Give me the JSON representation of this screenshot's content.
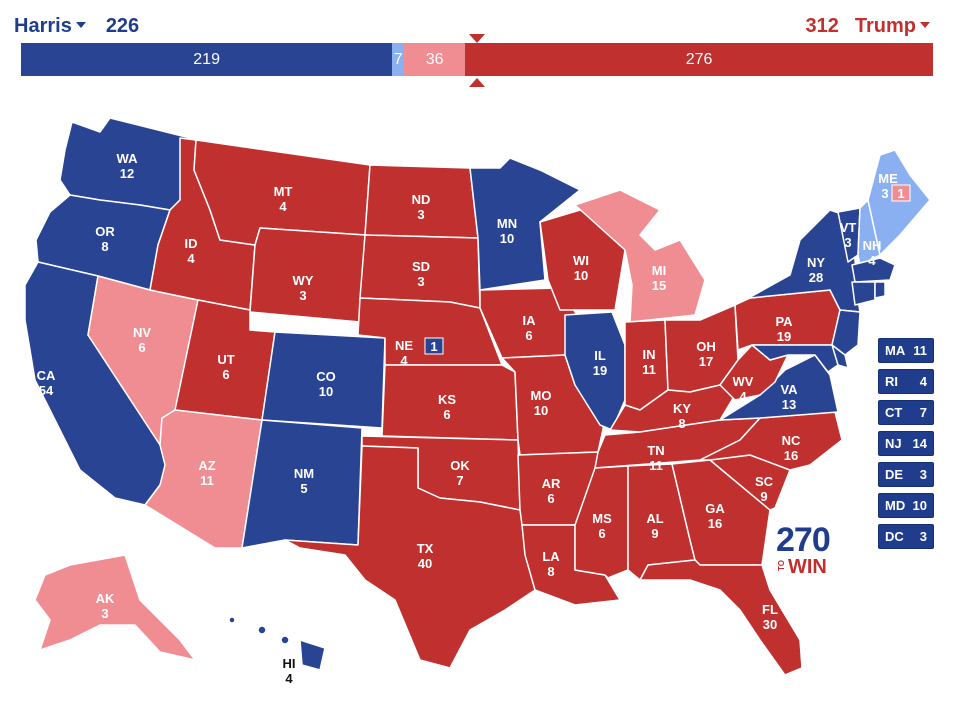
{
  "colors": {
    "safe_dem": "#2a4494",
    "lean_dem": "#8ab0f2",
    "lean_rep": "#f08d93",
    "safe_rep": "#c0302f"
  },
  "header": {
    "left_candidate": "Harris",
    "left_total": "226",
    "right_candidate": "Trump",
    "right_total": "312",
    "left_caret_icon": "chevron-down-icon",
    "right_caret_icon": "chevron-down-icon"
  },
  "bar": {
    "total_votes": 538,
    "segments": [
      {
        "label": "219",
        "value": 219,
        "category": "safe_dem"
      },
      {
        "label": "7",
        "value": 7,
        "category": "lean_dem"
      },
      {
        "label": "36",
        "value": 36,
        "category": "lean_rep"
      },
      {
        "label": "276",
        "value": 276,
        "category": "safe_rep"
      }
    ]
  },
  "states": {
    "WA": {
      "abbr": "WA",
      "votes": "12",
      "category": "safe_dem"
    },
    "OR": {
      "abbr": "OR",
      "votes": "8",
      "category": "safe_dem"
    },
    "CA": {
      "abbr": "CA",
      "votes": "54",
      "category": "safe_dem"
    },
    "NV": {
      "abbr": "NV",
      "votes": "6",
      "category": "lean_rep"
    },
    "ID": {
      "abbr": "ID",
      "votes": "4",
      "category": "safe_rep"
    },
    "MT": {
      "abbr": "MT",
      "votes": "4",
      "category": "safe_rep"
    },
    "WY": {
      "abbr": "WY",
      "votes": "3",
      "category": "safe_rep"
    },
    "UT": {
      "abbr": "UT",
      "votes": "6",
      "category": "safe_rep"
    },
    "AZ": {
      "abbr": "AZ",
      "votes": "11",
      "category": "lean_rep"
    },
    "CO": {
      "abbr": "CO",
      "votes": "10",
      "category": "safe_dem"
    },
    "NM": {
      "abbr": "NM",
      "votes": "5",
      "category": "safe_dem"
    },
    "ND": {
      "abbr": "ND",
      "votes": "3",
      "category": "safe_rep"
    },
    "SD": {
      "abbr": "SD",
      "votes": "3",
      "category": "safe_rep"
    },
    "NE": {
      "abbr": "NE",
      "votes": "4",
      "category": "safe_rep",
      "district_votes": "1",
      "district_category": "safe_dem"
    },
    "KS": {
      "abbr": "KS",
      "votes": "6",
      "category": "safe_rep"
    },
    "OK": {
      "abbr": "OK",
      "votes": "7",
      "category": "safe_rep"
    },
    "TX": {
      "abbr": "TX",
      "votes": "40",
      "category": "safe_rep"
    },
    "MN": {
      "abbr": "MN",
      "votes": "10",
      "category": "safe_dem"
    },
    "IA": {
      "abbr": "IA",
      "votes": "6",
      "category": "safe_rep"
    },
    "MO": {
      "abbr": "MO",
      "votes": "10",
      "category": "safe_rep"
    },
    "AR": {
      "abbr": "AR",
      "votes": "6",
      "category": "safe_rep"
    },
    "LA": {
      "abbr": "LA",
      "votes": "8",
      "category": "safe_rep"
    },
    "WI": {
      "abbr": "WI",
      "votes": "10",
      "category": "safe_rep"
    },
    "IL": {
      "abbr": "IL",
      "votes": "19",
      "category": "safe_dem"
    },
    "MI": {
      "abbr": "MI",
      "votes": "15",
      "category": "lean_rep"
    },
    "IN": {
      "abbr": "IN",
      "votes": "11",
      "category": "safe_rep"
    },
    "OH": {
      "abbr": "OH",
      "votes": "17",
      "category": "safe_rep"
    },
    "KY": {
      "abbr": "KY",
      "votes": "8",
      "category": "safe_rep"
    },
    "TN": {
      "abbr": "TN",
      "votes": "11",
      "category": "safe_rep"
    },
    "MS": {
      "abbr": "MS",
      "votes": "6",
      "category": "safe_rep"
    },
    "AL": {
      "abbr": "AL",
      "votes": "9",
      "category": "safe_rep"
    },
    "GA": {
      "abbr": "GA",
      "votes": "16",
      "category": "safe_rep"
    },
    "FL": {
      "abbr": "FL",
      "votes": "30",
      "category": "safe_rep"
    },
    "SC": {
      "abbr": "SC",
      "votes": "9",
      "category": "safe_rep"
    },
    "NC": {
      "abbr": "NC",
      "votes": "16",
      "category": "safe_rep"
    },
    "VA": {
      "abbr": "VA",
      "votes": "13",
      "category": "safe_dem"
    },
    "WV": {
      "abbr": "WV",
      "votes": "4",
      "category": "safe_rep"
    },
    "PA": {
      "abbr": "PA",
      "votes": "19",
      "category": "safe_rep"
    },
    "NY": {
      "abbr": "NY",
      "votes": "28",
      "category": "safe_dem"
    },
    "VT": {
      "abbr": "VT",
      "votes": "3",
      "category": "safe_dem"
    },
    "NH": {
      "abbr": "NH",
      "votes": "4",
      "category": "lean_dem"
    },
    "ME": {
      "abbr": "ME",
      "votes": "3",
      "category": "lean_dem",
      "district_votes": "1",
      "district_category": "lean_rep"
    },
    "AK": {
      "abbr": "AK",
      "votes": "3",
      "category": "lean_rep"
    },
    "HI": {
      "abbr": "HI",
      "votes": "4",
      "category": "safe_dem"
    }
  },
  "small_states": [
    {
      "abbr": "MA",
      "votes": "11"
    },
    {
      "abbr": "RI",
      "votes": "4"
    },
    {
      "abbr": "CT",
      "votes": "7"
    },
    {
      "abbr": "NJ",
      "votes": "14"
    },
    {
      "abbr": "DE",
      "votes": "3"
    },
    {
      "abbr": "MD",
      "votes": "10"
    },
    {
      "abbr": "DC",
      "votes": "3"
    }
  ],
  "logo": {
    "number": "270",
    "to": "TO",
    "win": "WIN"
  }
}
